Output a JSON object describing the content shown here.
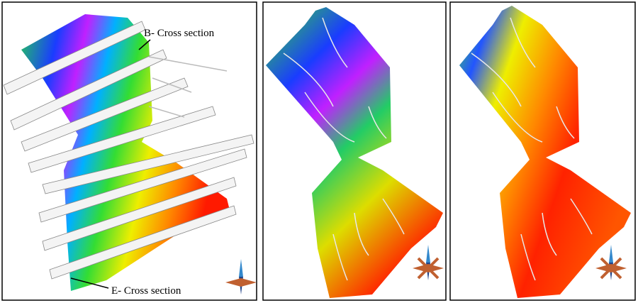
{
  "annotations": [
    {
      "text": "B- Cross section"
    },
    {
      "text": "E- Cross section"
    }
  ]
}
